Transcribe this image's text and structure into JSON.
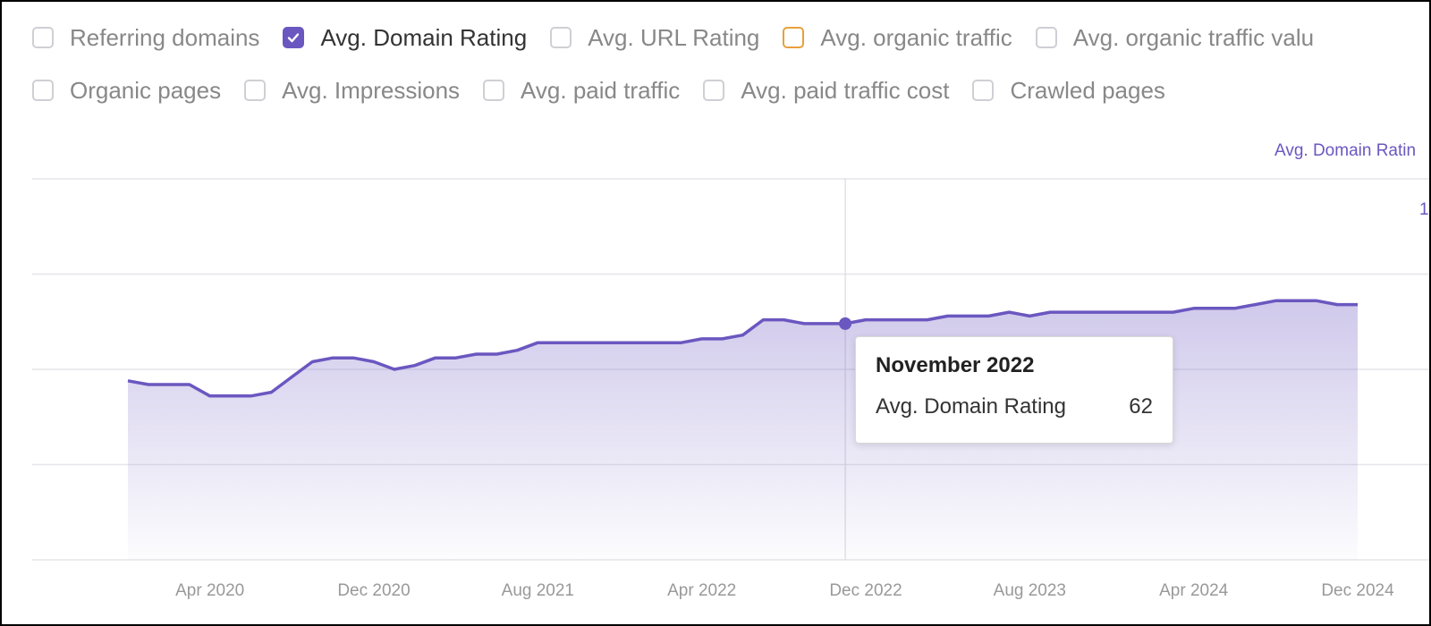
{
  "metrics": [
    {
      "label": "Referring domains",
      "checked": false
    },
    {
      "label": "Avg. Domain Rating",
      "checked": true
    },
    {
      "label": "Avg. URL Rating",
      "checked": false
    },
    {
      "label": "Avg. organic traffic",
      "checked": false
    },
    {
      "label": "Avg. organic traffic valu",
      "checked": false
    },
    {
      "label": "Organic pages",
      "checked": false
    },
    {
      "label": "Avg. Impressions",
      "checked": false
    },
    {
      "label": "Avg. paid traffic",
      "checked": false
    },
    {
      "label": "Avg. paid traffic cost",
      "checked": false
    },
    {
      "label": "Crawled pages",
      "checked": false
    }
  ],
  "colors": {
    "series": "#6b57c0",
    "checkbox_highlight": "#e8a03c",
    "grid": "#e6e6ea",
    "tick_text": "#999999"
  },
  "icons": {
    "checked": "check-icon"
  },
  "tooltip": {
    "title": "November 2022",
    "series_label": "Avg. Domain Rating",
    "value": "62"
  },
  "chart_data": {
    "type": "area",
    "ylabel": "Avg. Domain Ratin",
    "y_tick_partial": "1",
    "ylim": [
      0,
      100
    ],
    "grid": true,
    "x_ticks": [
      "Apr 2020",
      "Dec 2020",
      "Aug 2021",
      "Apr 2022",
      "Dec 2022",
      "Aug 2023",
      "Apr 2024",
      "Dec 2024"
    ],
    "x_range": [
      "2019-12",
      "2024-12"
    ],
    "highlight": {
      "x": "2022-11",
      "y": 62
    },
    "series": [
      {
        "name": "Avg. Domain Rating",
        "x": [
          "2019-12",
          "2020-01",
          "2020-02",
          "2020-03",
          "2020-04",
          "2020-05",
          "2020-06",
          "2020-07",
          "2020-08",
          "2020-09",
          "2020-10",
          "2020-11",
          "2020-12",
          "2021-01",
          "2021-02",
          "2021-03",
          "2021-04",
          "2021-05",
          "2021-06",
          "2021-07",
          "2021-08",
          "2021-09",
          "2021-10",
          "2021-11",
          "2021-12",
          "2022-01",
          "2022-02",
          "2022-03",
          "2022-04",
          "2022-05",
          "2022-06",
          "2022-07",
          "2022-08",
          "2022-09",
          "2022-10",
          "2022-11",
          "2022-12",
          "2023-01",
          "2023-02",
          "2023-03",
          "2023-04",
          "2023-05",
          "2023-06",
          "2023-07",
          "2023-08",
          "2023-09",
          "2023-10",
          "2023-11",
          "2023-12",
          "2024-01",
          "2024-02",
          "2024-03",
          "2024-04",
          "2024-05",
          "2024-06",
          "2024-07",
          "2024-08",
          "2024-09",
          "2024-10",
          "2024-11",
          "2024-12"
        ],
        "values": [
          47,
          46,
          46,
          46,
          43,
          43,
          43,
          44,
          48,
          52,
          53,
          53,
          52,
          50,
          51,
          53,
          53,
          54,
          54,
          55,
          57,
          57,
          57,
          57,
          57,
          57,
          57,
          57,
          58,
          58,
          59,
          63,
          63,
          62,
          62,
          62,
          63,
          63,
          63,
          63,
          64,
          64,
          64,
          65,
          64,
          65,
          65,
          65,
          65,
          65,
          65,
          65,
          66,
          66,
          66,
          67,
          68,
          68,
          68,
          67,
          67
        ]
      }
    ]
  }
}
